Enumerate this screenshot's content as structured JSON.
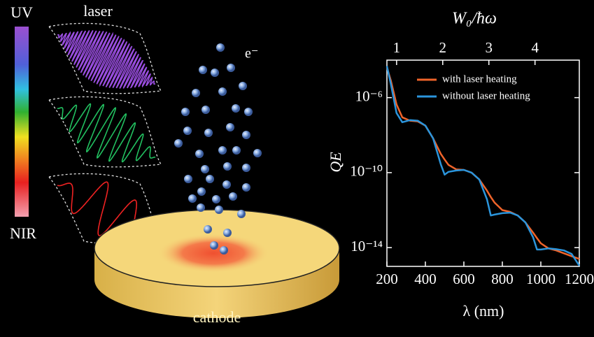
{
  "illustration": {
    "uv": "UV",
    "nir": "NIR",
    "laser": "laser",
    "electron": "e⁻",
    "cathode": "cathode"
  },
  "chart_data": {
    "type": "line",
    "xlabel": "λ (nm)",
    "ylabel": "QE",
    "x2label": "W₀/ħω",
    "xlim": [
      200,
      1200
    ],
    "xticks": [
      200,
      400,
      600,
      800,
      1000,
      1200
    ],
    "x2lim": [
      0.79,
      4.96
    ],
    "x2ticks": [
      1,
      2,
      3,
      4
    ],
    "ylim": [
      1e-15,
      0.0001
    ],
    "log_y": true,
    "yticks": [
      {
        "value": 1e-06,
        "label": "10⁻⁶"
      },
      {
        "value": 1e-10,
        "label": "10⁻¹⁰"
      },
      {
        "value": 1e-14,
        "label": "10⁻¹⁴"
      }
    ],
    "legend": "upper right",
    "x": [
      200,
      220,
      250,
      280,
      320,
      360,
      400,
      440,
      480,
      500,
      520,
      560,
      600,
      640,
      680,
      720,
      740,
      760,
      800,
      840,
      880,
      920,
      960,
      980,
      1000,
      1040,
      1080,
      1120,
      1160,
      1200
    ],
    "series": [
      {
        "name": "with laser heating",
        "color": "#f0642a",
        "values": [
          4.1e-05,
          8.5e-06,
          4.3e-07,
          8.9e-08,
          5.9e-08,
          5.4e-08,
          3.2e-08,
          6.8e-09,
          1e-09,
          5e-10,
          2.6e-10,
          1.5e-10,
          1.4e-10,
          1e-10,
          4.3e-11,
          1.1e-11,
          5e-12,
          2.5e-12,
          1e-12,
          8.1e-13,
          5.2e-13,
          2.2e-13,
          6.2e-14,
          3.2e-14,
          1.7e-14,
          9.1e-15,
          7.1e-15,
          5e-15,
          3.5e-15,
          2.5e-15
        ]
      },
      {
        "name": "without laser heating",
        "color": "#2b95dc",
        "values": [
          4.8e-05,
          5.6e-06,
          1.5e-07,
          4.9e-08,
          6.3e-08,
          5.9e-08,
          3.2e-08,
          6.8e-09,
          2.8e-10,
          7.8e-11,
          1.1e-10,
          1.3e-10,
          1.4e-10,
          1e-10,
          4.3e-11,
          3.8e-12,
          5.2e-13,
          5.8e-13,
          6.9e-13,
          7.4e-13,
          5.2e-13,
          2.2e-13,
          3.5e-14,
          7.9e-15,
          7.9e-15,
          9.1e-15,
          8.3e-15,
          7.1e-15,
          4.6e-15,
          1.1e-15
        ]
      }
    ]
  }
}
